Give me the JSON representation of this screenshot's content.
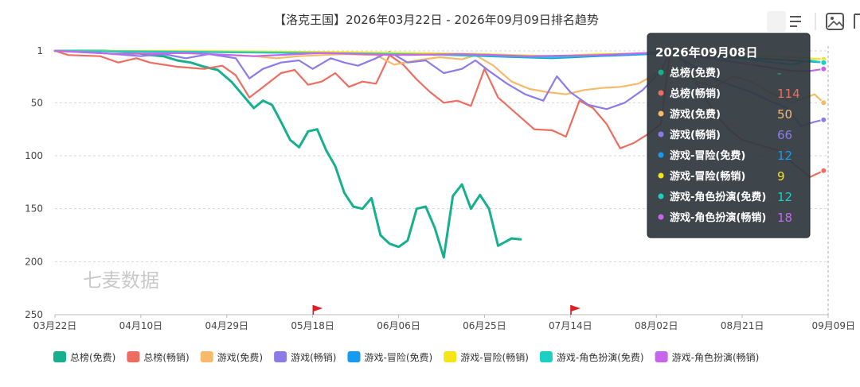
{
  "chart_data": {
    "type": "line",
    "title": "【洛克王国】2026年03月22日 - 2026年09月09日排名趋势",
    "watermark": "七麦数据",
    "x_ticks": [
      "03月22日",
      "04月10日",
      "04月29日",
      "05月18日",
      "06月06日",
      "06月25日",
      "07月14日",
      "08月02日",
      "08月21日",
      "09月09日"
    ],
    "x_range": [
      "2026-03-22",
      "2026-09-09"
    ],
    "y_inverted": true,
    "ylim": [
      1,
      250
    ],
    "y_ticks": [
      "1",
      "50",
      "100",
      "150",
      "200",
      "250"
    ],
    "grid": "horizontal-dashed",
    "legend_position": "bottom",
    "flag_markers": [
      "2026-05-19",
      "2026-07-15"
    ],
    "series": [
      {
        "name": "总榜(免费)",
        "color": "#16b08e",
        "points": [
          [
            "2026-03-22",
            1
          ],
          [
            "2026-04-02",
            1
          ],
          [
            "2026-04-06",
            2
          ],
          [
            "2026-04-09",
            3
          ],
          [
            "2026-04-12",
            5
          ],
          [
            "2026-04-15",
            6
          ],
          [
            "2026-04-18",
            10
          ],
          [
            "2026-04-21",
            12
          ],
          [
            "2026-04-24",
            16
          ],
          [
            "2026-04-27",
            19
          ],
          [
            "2026-04-30",
            30
          ],
          [
            "2026-05-03",
            45
          ],
          [
            "2026-05-05",
            55
          ],
          [
            "2026-05-07",
            48
          ],
          [
            "2026-05-09",
            52
          ],
          [
            "2026-05-11",
            68
          ],
          [
            "2026-05-13",
            85
          ],
          [
            "2026-05-15",
            92
          ],
          [
            "2026-05-17",
            77
          ],
          [
            "2026-05-19",
            75
          ],
          [
            "2026-05-21",
            95
          ],
          [
            "2026-05-23",
            110
          ],
          [
            "2026-05-25",
            135
          ],
          [
            "2026-05-27",
            148
          ],
          [
            "2026-05-29",
            150
          ],
          [
            "2026-05-31",
            140
          ],
          [
            "2026-06-02",
            175
          ],
          [
            "2026-06-04",
            183
          ],
          [
            "2026-06-06",
            186
          ],
          [
            "2026-06-08",
            180
          ],
          [
            "2026-06-10",
            150
          ],
          [
            "2026-06-12",
            148
          ],
          [
            "2026-06-14",
            168
          ],
          [
            "2026-06-16",
            196
          ],
          [
            "2026-06-18",
            138
          ],
          [
            "2026-06-20",
            127
          ],
          [
            "2026-06-22",
            150
          ],
          [
            "2026-06-24",
            137
          ],
          [
            "2026-06-26",
            150
          ],
          [
            "2026-06-28",
            185
          ],
          [
            "2026-07-01",
            178
          ],
          [
            "2026-07-03",
            179
          ]
        ]
      },
      {
        "name": "总榜(畅销)",
        "color": "#ee6d61",
        "points": [
          [
            "2026-03-22",
            1
          ],
          [
            "2026-03-25",
            5
          ],
          [
            "2026-04-01",
            6
          ],
          [
            "2026-04-05",
            12
          ],
          [
            "2026-04-09",
            8
          ],
          [
            "2026-04-12",
            12
          ],
          [
            "2026-04-18",
            16
          ],
          [
            "2026-04-24",
            18
          ],
          [
            "2026-04-28",
            15
          ],
          [
            "2026-05-01",
            24
          ],
          [
            "2026-05-04",
            45
          ],
          [
            "2026-05-08",
            32
          ],
          [
            "2026-05-11",
            22
          ],
          [
            "2026-05-14",
            19
          ],
          [
            "2026-05-17",
            33
          ],
          [
            "2026-05-20",
            30
          ],
          [
            "2026-05-23",
            22
          ],
          [
            "2026-05-26",
            35
          ],
          [
            "2026-05-29",
            30
          ],
          [
            "2026-06-01",
            32
          ],
          [
            "2026-06-04",
            5
          ],
          [
            "2026-06-07",
            14
          ],
          [
            "2026-06-10",
            28
          ],
          [
            "2026-06-13",
            40
          ],
          [
            "2026-06-16",
            50
          ],
          [
            "2026-06-19",
            48
          ],
          [
            "2026-06-22",
            53
          ],
          [
            "2026-06-25",
            18
          ],
          [
            "2026-06-28",
            45
          ],
          [
            "2026-07-02",
            60
          ],
          [
            "2026-07-06",
            75
          ],
          [
            "2026-07-10",
            76
          ],
          [
            "2026-07-13",
            82
          ],
          [
            "2026-07-16",
            48
          ],
          [
            "2026-07-19",
            55
          ],
          [
            "2026-07-22",
            70
          ],
          [
            "2026-07-25",
            93
          ],
          [
            "2026-07-28",
            88
          ],
          [
            "2026-07-31",
            80
          ],
          [
            "2026-08-03",
            70
          ],
          [
            "2026-08-05",
            2
          ],
          [
            "2026-08-08",
            10
          ],
          [
            "2026-08-12",
            40
          ],
          [
            "2026-08-15",
            60
          ],
          [
            "2026-08-18",
            75
          ],
          [
            "2026-08-21",
            85
          ],
          [
            "2026-08-25",
            90
          ],
          [
            "2026-08-29",
            95
          ],
          [
            "2026-09-02",
            110
          ],
          [
            "2026-09-05",
            120
          ],
          [
            "2026-09-08",
            114
          ]
        ]
      },
      {
        "name": "游戏(免费)",
        "color": "#f7b96a",
        "points": [
          [
            "2026-03-22",
            1
          ],
          [
            "2026-04-10",
            2
          ],
          [
            "2026-04-25",
            4
          ],
          [
            "2026-05-05",
            6
          ],
          [
            "2026-05-10",
            8
          ],
          [
            "2026-05-15",
            6
          ],
          [
            "2026-05-20",
            5
          ],
          [
            "2026-05-25",
            4
          ],
          [
            "2026-06-01",
            5
          ],
          [
            "2026-06-05",
            14
          ],
          [
            "2026-06-10",
            10
          ],
          [
            "2026-06-15",
            7
          ],
          [
            "2026-06-20",
            9
          ],
          [
            "2026-06-23",
            5
          ],
          [
            "2026-06-27",
            15
          ],
          [
            "2026-07-01",
            30
          ],
          [
            "2026-07-05",
            37
          ],
          [
            "2026-07-09",
            40
          ],
          [
            "2026-07-13",
            42
          ],
          [
            "2026-07-17",
            38
          ],
          [
            "2026-07-21",
            36
          ],
          [
            "2026-07-25",
            35
          ],
          [
            "2026-07-29",
            32
          ],
          [
            "2026-08-01",
            25
          ],
          [
            "2026-08-03",
            18
          ],
          [
            "2026-08-07",
            22
          ],
          [
            "2026-08-11",
            30
          ],
          [
            "2026-08-15",
            35
          ],
          [
            "2026-08-19",
            25
          ],
          [
            "2026-08-23",
            30
          ],
          [
            "2026-08-27",
            40
          ],
          [
            "2026-09-01",
            50
          ],
          [
            "2026-09-04",
            45
          ],
          [
            "2026-09-06",
            42
          ],
          [
            "2026-09-08",
            50
          ]
        ]
      },
      {
        "name": "游戏(畅销)",
        "color": "#8b7ce9",
        "points": [
          [
            "2026-03-22",
            1
          ],
          [
            "2026-04-01",
            3
          ],
          [
            "2026-04-10",
            6
          ],
          [
            "2026-04-15",
            4
          ],
          [
            "2026-04-20",
            8
          ],
          [
            "2026-04-25",
            4
          ],
          [
            "2026-05-01",
            8
          ],
          [
            "2026-05-04",
            27
          ],
          [
            "2026-05-07",
            18
          ],
          [
            "2026-05-11",
            12
          ],
          [
            "2026-05-15",
            10
          ],
          [
            "2026-05-18",
            18
          ],
          [
            "2026-05-22",
            8
          ],
          [
            "2026-05-25",
            12
          ],
          [
            "2026-05-28",
            15
          ],
          [
            "2026-06-01",
            8
          ],
          [
            "2026-06-04",
            2
          ],
          [
            "2026-06-08",
            12
          ],
          [
            "2026-06-12",
            10
          ],
          [
            "2026-06-16",
            22
          ],
          [
            "2026-06-20",
            18
          ],
          [
            "2026-06-23",
            10
          ],
          [
            "2026-06-26",
            20
          ],
          [
            "2026-06-30",
            32
          ],
          [
            "2026-07-04",
            42
          ],
          [
            "2026-07-08",
            48
          ],
          [
            "2026-07-11",
            25
          ],
          [
            "2026-07-14",
            40
          ],
          [
            "2026-07-18",
            52
          ],
          [
            "2026-07-22",
            56
          ],
          [
            "2026-07-26",
            50
          ],
          [
            "2026-07-30",
            38
          ],
          [
            "2026-08-03",
            20
          ],
          [
            "2026-08-05",
            2
          ],
          [
            "2026-08-08",
            10
          ],
          [
            "2026-08-12",
            20
          ],
          [
            "2026-08-15",
            28
          ],
          [
            "2026-08-19",
            34
          ],
          [
            "2026-08-23",
            40
          ],
          [
            "2026-08-27",
            48
          ],
          [
            "2026-08-31",
            55
          ],
          [
            "2026-09-03",
            72
          ],
          [
            "2026-09-06",
            68
          ],
          [
            "2026-09-08",
            66
          ]
        ]
      },
      {
        "name": "游戏-冒险(免费)",
        "color": "#169bf0",
        "points": [
          [
            "2026-03-22",
            1
          ],
          [
            "2026-04-20",
            2
          ],
          [
            "2026-05-20",
            3
          ],
          [
            "2026-06-10",
            4
          ],
          [
            "2026-06-25",
            6
          ],
          [
            "2026-07-10",
            8
          ],
          [
            "2026-07-20",
            6
          ],
          [
            "2026-08-01",
            4
          ],
          [
            "2026-08-05",
            2
          ],
          [
            "2026-08-20",
            7
          ],
          [
            "2026-09-01",
            10
          ],
          [
            "2026-09-08",
            12
          ]
        ]
      },
      {
        "name": "游戏-冒险(畅销)",
        "color": "#f5e41a",
        "points": [
          [
            "2026-03-22",
            1
          ],
          [
            "2026-04-20",
            1
          ],
          [
            "2026-05-20",
            2
          ],
          [
            "2026-06-10",
            3
          ],
          [
            "2026-06-25",
            4
          ],
          [
            "2026-07-10",
            6
          ],
          [
            "2026-07-20",
            4
          ],
          [
            "2026-08-05",
            3
          ],
          [
            "2026-08-20",
            5
          ],
          [
            "2026-09-01",
            7
          ],
          [
            "2026-09-08",
            9
          ]
        ]
      },
      {
        "name": "游戏-角色扮演(免费)",
        "color": "#1ccfc3",
        "points": [
          [
            "2026-03-22",
            1
          ],
          [
            "2026-04-25",
            2
          ],
          [
            "2026-05-20",
            3
          ],
          [
            "2026-06-20",
            5
          ],
          [
            "2026-07-10",
            7
          ],
          [
            "2026-08-01",
            3
          ],
          [
            "2026-08-20",
            8
          ],
          [
            "2026-09-01",
            14
          ],
          [
            "2026-09-05",
            10
          ],
          [
            "2026-09-08",
            12
          ]
        ]
      },
      {
        "name": "游戏-角色扮演(畅销)",
        "color": "#c766ec",
        "points": [
          [
            "2026-03-22",
            1
          ],
          [
            "2026-04-05",
            4
          ],
          [
            "2026-04-20",
            3
          ],
          [
            "2026-05-05",
            6
          ],
          [
            "2026-05-20",
            3
          ],
          [
            "2026-06-05",
            5
          ],
          [
            "2026-06-20",
            4
          ],
          [
            "2026-07-05",
            6
          ],
          [
            "2026-07-20",
            5
          ],
          [
            "2026-08-05",
            2
          ],
          [
            "2026-08-20",
            12
          ],
          [
            "2026-09-01",
            20
          ],
          [
            "2026-09-05",
            20
          ],
          [
            "2026-09-08",
            18
          ]
        ]
      }
    ]
  },
  "tooltip": {
    "date": "2026年09月08日",
    "rows": [
      {
        "label": "总榜(免费)",
        "value": "-",
        "color": "#16b08e"
      },
      {
        "label": "总榜(畅销)",
        "value": "114",
        "color": "#ee6d61"
      },
      {
        "label": "游戏(免费)",
        "value": "50",
        "color": "#f7b96a"
      },
      {
        "label": "游戏(畅销)",
        "value": "66",
        "color": "#8b7ce9"
      },
      {
        "label": "游戏-冒险(免费)",
        "value": "12",
        "color": "#169bf0"
      },
      {
        "label": "游戏-冒险(畅销)",
        "value": "9",
        "color": "#f5e41a"
      },
      {
        "label": "游戏-角色扮演(免费)",
        "value": "12",
        "color": "#1ccfc3"
      },
      {
        "label": "游戏-角色扮演(畅销)",
        "value": "18",
        "color": "#c766ec"
      }
    ]
  },
  "toolbar": {
    "icons": [
      "bar-chart-icon",
      "list-icon",
      "image-download-icon",
      "share-icon"
    ]
  }
}
